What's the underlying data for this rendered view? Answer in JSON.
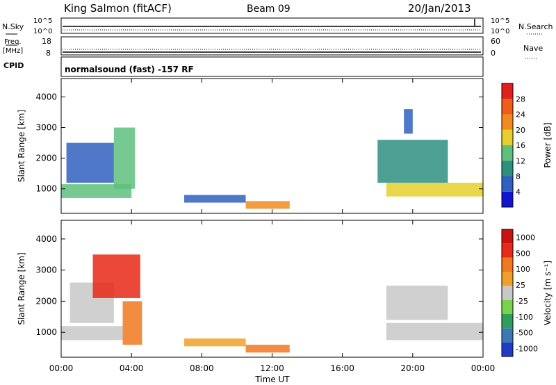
{
  "header": {
    "site": "King Salmon (fitACF)",
    "beam": "Beam 09",
    "date": "20/Jan/2013"
  },
  "aux_panels": {
    "nsky_label": "N.Sky",
    "nsky_ticks": [
      "10^5",
      "10^0"
    ],
    "nsearch_label": "N.Search",
    "nsearch_ticks": [
      "10^5",
      "10^0"
    ],
    "freq_label_1": "Freq.",
    "freq_label_2": "[MHz]",
    "freq_ticks": [
      "18",
      "8"
    ],
    "nave_label": "Nave",
    "nave_ticks": [
      "60",
      "0"
    ],
    "cpid_label": "CPID",
    "cpid_text": "normalsound (fast) -157 RF"
  },
  "chart_data": [
    {
      "type": "heatmap",
      "name": "power",
      "ylabel": "Slant Range [km]",
      "ylim": [
        200,
        4600
      ],
      "yticks": [
        "1000",
        "2000",
        "3000",
        "4000"
      ],
      "ytick_values": [
        1000,
        2000,
        3000,
        4000
      ],
      "colorbar_label": "Power [dB]",
      "colorbar_ticks": [
        "4",
        "8",
        "12",
        "16",
        "20",
        "24",
        "28"
      ],
      "colorbar_colors": [
        "#1414d0",
        "#3060c0",
        "#2e8f7f",
        "#5ec07c",
        "#e6cf2e",
        "#f08c1e",
        "#f05c1a",
        "#e0201a"
      ],
      "regions": [
        {
          "t": [
            0.0,
            4.0
          ],
          "r": [
            700,
            1150
          ],
          "level": 3
        },
        {
          "t": [
            0.3,
            3.0
          ],
          "r": [
            1200,
            2500
          ],
          "level": 1
        },
        {
          "t": [
            3.0,
            4.2
          ],
          "r": [
            1000,
            3000
          ],
          "level": 3
        },
        {
          "t": [
            7.0,
            10.5
          ],
          "r": [
            550,
            800
          ],
          "level": 1
        },
        {
          "t": [
            10.5,
            13.0
          ],
          "r": [
            350,
            600
          ],
          "level": 5
        },
        {
          "t": [
            18.5,
            24.0
          ],
          "r": [
            750,
            1200
          ],
          "level": 4
        },
        {
          "t": [
            18.0,
            22.0
          ],
          "r": [
            1200,
            2600
          ],
          "level": 2
        },
        {
          "t": [
            19.5,
            20.0
          ],
          "r": [
            2800,
            3600
          ],
          "level": 1
        }
      ]
    },
    {
      "type": "heatmap",
      "name": "velocity",
      "ylabel": "Slant Range [km]",
      "ylim": [
        200,
        4600
      ],
      "yticks": [
        "1000",
        "2000",
        "3000",
        "4000"
      ],
      "ytick_values": [
        1000,
        2000,
        3000,
        4000
      ],
      "colorbar_label": "Velocity [m s⁻¹]",
      "colorbar_ticks": [
        "1000",
        "500",
        "100",
        "25",
        "-25",
        "-100",
        "-500",
        "-1000"
      ],
      "colorbar_colors": [
        "#1e3cc8",
        "#3c78b4",
        "#2e9e5a",
        "#78d24a",
        "#c8c8c8",
        "#f0a028",
        "#f07820",
        "#e82818",
        "#c81410"
      ],
      "regions": [
        {
          "t": [
            0.0,
            3.5
          ],
          "r": [
            750,
            1200
          ],
          "level": 4
        },
        {
          "t": [
            0.5,
            3.0
          ],
          "r": [
            1300,
            2600
          ],
          "level": 4
        },
        {
          "t": [
            3.5,
            4.6
          ],
          "r": [
            600,
            2000
          ],
          "level": 6
        },
        {
          "t": [
            1.8,
            4.5
          ],
          "r": [
            2100,
            3500
          ],
          "level": 7
        },
        {
          "t": [
            7.0,
            10.5
          ],
          "r": [
            550,
            800
          ],
          "level": 5
        },
        {
          "t": [
            10.5,
            13.0
          ],
          "r": [
            350,
            600
          ],
          "level": 6
        },
        {
          "t": [
            18.5,
            24.0
          ],
          "r": [
            750,
            1300
          ],
          "level": 4
        },
        {
          "t": [
            18.5,
            22.0
          ],
          "r": [
            1400,
            2500
          ],
          "level": 4
        }
      ]
    }
  ],
  "time_axis": {
    "xlabel": "Time UT",
    "ticks": [
      "00:00",
      "04:00",
      "08:00",
      "12:00",
      "16:00",
      "20:00",
      "00:00"
    ],
    "tick_hours": [
      0,
      4,
      8,
      12,
      16,
      20,
      24
    ]
  }
}
